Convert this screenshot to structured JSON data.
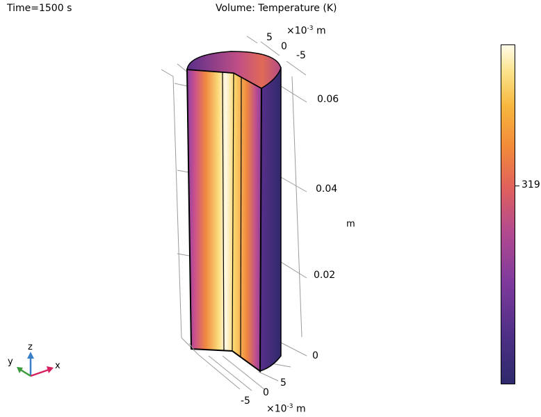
{
  "header": {
    "time_label": "Time=1500 s",
    "plot_title": "Volume: Temperature (K)"
  },
  "axes": {
    "top_exp": "×10",
    "top_exp_sup": "-3",
    "top_unit": "m",
    "top_ticks": [
      "5",
      "0",
      "-5"
    ],
    "z_ticks": [
      "0.06",
      "0.04",
      "0.02",
      "0"
    ],
    "z_unit": "m",
    "bottom_ticks": [
      "5",
      "0",
      "-5"
    ],
    "bottom_exp": "×10",
    "bottom_exp_sup": "-3",
    "bottom_unit": "m"
  },
  "triad": {
    "x": "x",
    "y": "y",
    "z": "z",
    "colors": {
      "x": "#d62060",
      "y": "#3a9a3a",
      "z": "#3a7ec8"
    }
  },
  "colorbar": {
    "label": "319",
    "colormap": "inferno-like (dark purple to pale yellow)"
  }
}
